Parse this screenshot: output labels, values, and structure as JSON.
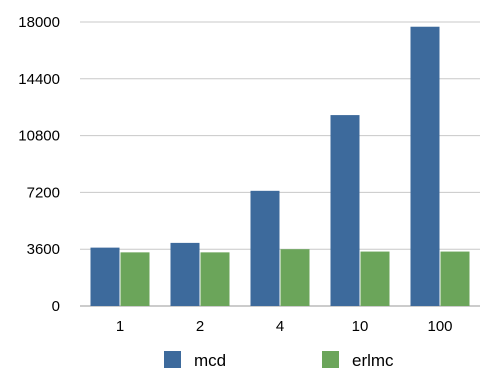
{
  "chart_data": {
    "type": "bar",
    "title": "",
    "xlabel": "",
    "ylabel": "",
    "categories": [
      "1",
      "2",
      "4",
      "10",
      "100"
    ],
    "series": [
      {
        "name": "mcd",
        "values": [
          3700,
          4000,
          7300,
          12100,
          17700
        ],
        "color": "#3d6a9c"
      },
      {
        "name": "erlmc",
        "values": [
          3400,
          3400,
          3600,
          3450,
          3450
        ],
        "color": "#6ba55a"
      }
    ],
    "yticks": [
      "0",
      "3600",
      "7200",
      "10800",
      "14400",
      "18000"
    ],
    "ylim": [
      0,
      18000
    ],
    "grid": true,
    "legend_position": "bottom"
  }
}
